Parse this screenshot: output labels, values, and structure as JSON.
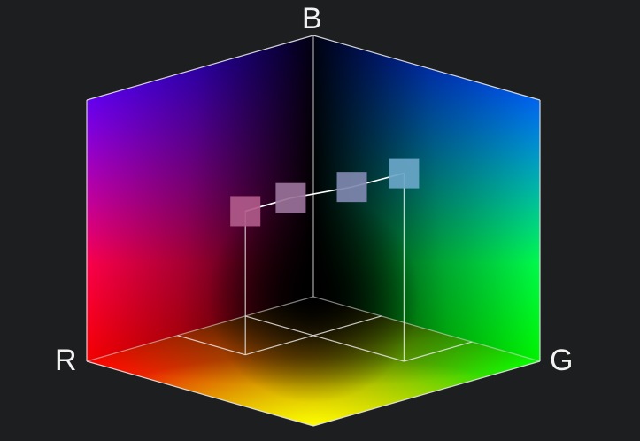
{
  "axes": {
    "red_label": "R",
    "green_label": "G",
    "blue_label": "B"
  },
  "colors": {
    "background": "#1d1e20",
    "black": "#000000",
    "red": "#ff0000",
    "green": "#00ff00",
    "blue": "#0000ff",
    "yellow": "#ffff00",
    "magenta": "#ff00ff",
    "cyan": "#00ffff",
    "white": "#ffffff",
    "guide_lines": "#e6e6e6"
  },
  "color_samples": [
    {
      "r": 0.6,
      "g": 0.3,
      "b": 0.55,
      "color": "#b05a8a"
    },
    {
      "r": 0.5,
      "g": 0.4,
      "b": 0.6,
      "color": "#9a729a"
    },
    {
      "r": 0.38,
      "g": 0.55,
      "b": 0.65,
      "color": "#7f88b0"
    },
    {
      "r": 0.3,
      "g": 0.7,
      "b": 0.72,
      "color": "#6aa6c8"
    }
  ]
}
